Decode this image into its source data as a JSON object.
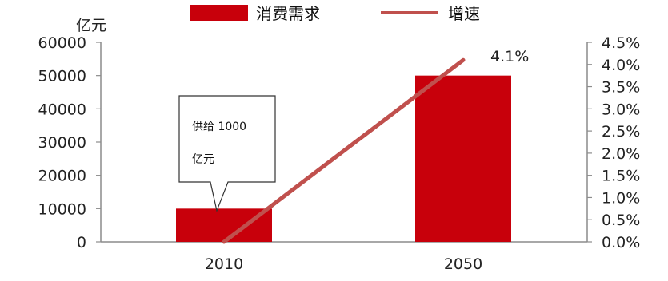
{
  "chart_data": {
    "type": "bar",
    "categories": [
      "2010",
      "2050"
    ],
    "series": [
      {
        "name": "消费需求",
        "kind": "bar",
        "axis": "left",
        "values": [
          10000,
          50000
        ],
        "color": "#c8000b"
      },
      {
        "name": "增速",
        "kind": "line",
        "axis": "right",
        "values": [
          0.0,
          4.1
        ],
        "color": "#c0504d"
      }
    ],
    "left_axis": {
      "unit_label": "亿元",
      "min": 0,
      "max": 60000,
      "ticks": [
        "0",
        "10000",
        "20000",
        "30000",
        "40000",
        "50000",
        "60000"
      ]
    },
    "right_axis": {
      "min": 0,
      "max": 4.5,
      "ticks": [
        "0.0%",
        "0.5%",
        "1.0%",
        "1.5%",
        "2.0%",
        "2.5%",
        "3.0%",
        "3.5%",
        "4.0%",
        "4.5%"
      ]
    },
    "legend": {
      "position": "top"
    },
    "annotations": [
      {
        "text": "4.1%",
        "target": "增速 2050"
      },
      {
        "lines": [
          "供给 1000",
          "亿元"
        ],
        "target": "消费需求 2010"
      }
    ],
    "grid": false
  }
}
